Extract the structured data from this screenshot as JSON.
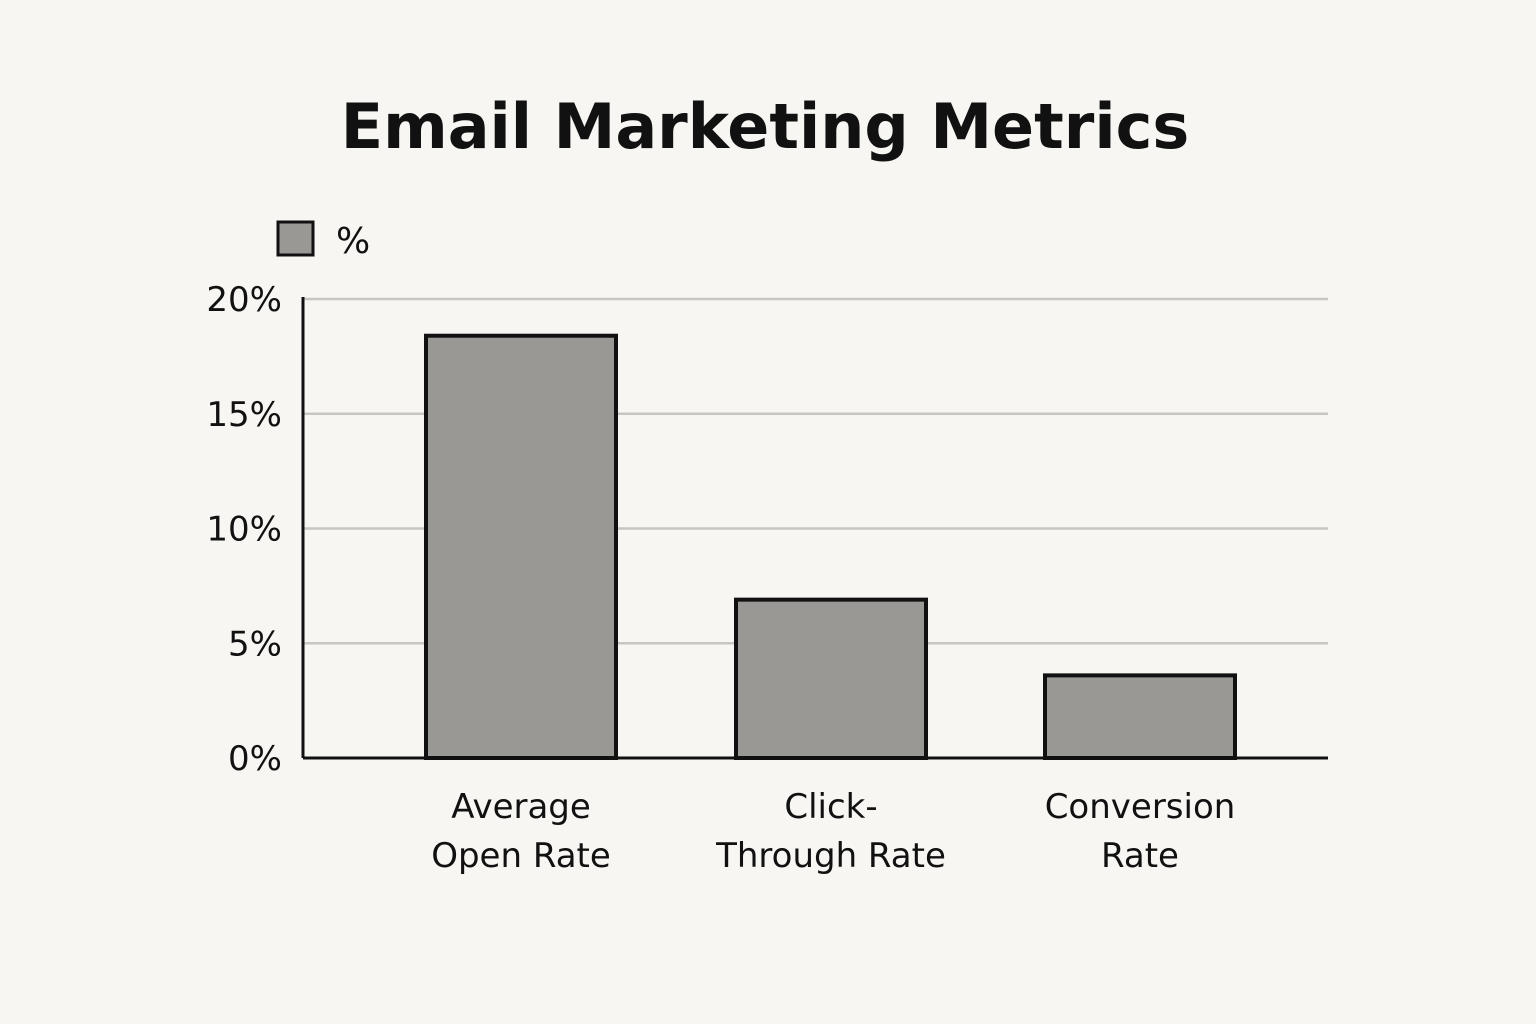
{
  "chart_data": {
    "type": "bar",
    "title": "Email Marketing Metrics",
    "xlabel": "",
    "ylabel": "",
    "categories": [
      [
        "Average",
        "Open Rate"
      ],
      [
        "Click-",
        "Through Rate"
      ],
      [
        "Conversion",
        "Rate"
      ]
    ],
    "series": [
      {
        "name": "%",
        "values": [
          18.4,
          6.9,
          3.6
        ]
      }
    ],
    "ylim": [
      0,
      20
    ],
    "yticks": [
      "0%",
      "5%",
      "10%",
      "15%",
      "20%"
    ],
    "grid": true,
    "legend": "top-left",
    "colors": {
      "bar_fill": "#9a9895",
      "bar_stroke": "#111111",
      "grid": "#c8c6c2",
      "axis": "#111111",
      "background": "#f7f6f2"
    }
  }
}
